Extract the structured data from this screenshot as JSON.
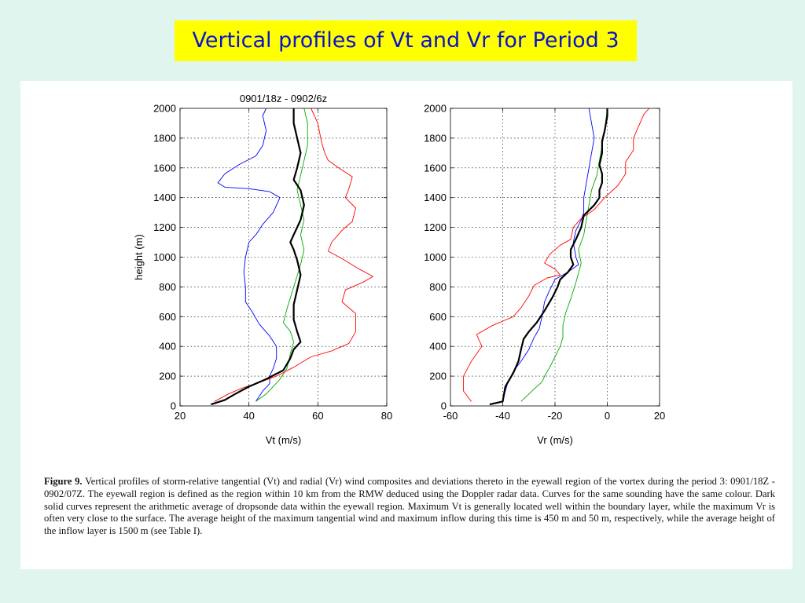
{
  "slide": {
    "title": "Vertical profiles of Vt and Vr for Period 3"
  },
  "caption": {
    "label": "Figure 9.",
    "text": "Vertical profiles of storm-relative tangential (Vt) and radial (Vr) wind composites and deviations thereto in the eyewall region of the vortex during the period 3: 0901/18Z - 0902/07Z. The eyewall region is defined as the region within 10 km from the RMW deduced using the Doppler radar data. Curves for the same sounding have the same colour. Dark solid curves represent the arithmetic average of dropsonde data within the eyewall region. Maximum Vt is generally located well within the boundary layer, while the maximum Vr is often very close to the surface. The average height of the maximum tangential wind and maximum inflow during this time is 450 m and 50 m, respectively, while the average height of the inflow layer is 1500 m (see Table I)."
  },
  "chart_data": [
    {
      "type": "line",
      "title": "0901/18z - 0902/6z",
      "xlabel": "Vt (m/s)",
      "ylabel": "height (m)",
      "xlim": [
        20,
        80
      ],
      "ylim": [
        0,
        2000
      ],
      "xticks": [
        20,
        40,
        60,
        80
      ],
      "yticks": [
        0,
        200,
        400,
        600,
        800,
        1000,
        1200,
        1400,
        1600,
        1800,
        2000
      ],
      "grid": true,
      "series": [
        {
          "color": "#0000ff",
          "width": 0.9,
          "points": [
            [
              42,
              30
            ],
            [
              44,
              100
            ],
            [
              46,
              150
            ],
            [
              46,
              200
            ],
            [
              47,
              250
            ],
            [
              48,
              320
            ],
            [
              48,
              400
            ],
            [
              46,
              470
            ],
            [
              43,
              550
            ],
            [
              41,
              630
            ],
            [
              39,
              700
            ],
            [
              39,
              800
            ],
            [
              38.5,
              900
            ],
            [
              39,
              1000
            ],
            [
              40,
              1100
            ],
            [
              42,
              1150
            ],
            [
              44,
              1220
            ],
            [
              47,
              1300
            ],
            [
              49,
              1400
            ],
            [
              46,
              1440
            ],
            [
              40,
              1460
            ],
            [
              33,
              1470
            ],
            [
              31,
              1500
            ],
            [
              33,
              1560
            ],
            [
              37,
              1620
            ],
            [
              42,
              1680
            ],
            [
              44,
              1750
            ],
            [
              45,
              1850
            ],
            [
              44,
              1950
            ],
            [
              45,
              2000
            ]
          ]
        },
        {
          "color": "#00aa00",
          "width": 0.9,
          "points": [
            [
              42,
              30
            ],
            [
              45,
              80
            ],
            [
              47,
              130
            ],
            [
              49,
              180
            ],
            [
              51,
              250
            ],
            [
              52,
              350
            ],
            [
              53,
              430
            ],
            [
              52,
              500
            ],
            [
              50,
              560
            ],
            [
              51,
              650
            ],
            [
              53,
              800
            ],
            [
              55,
              950
            ],
            [
              56,
              1050
            ],
            [
              55,
              1150
            ],
            [
              56,
              1250
            ],
            [
              55,
              1350
            ],
            [
              54,
              1450
            ],
            [
              55,
              1550
            ],
            [
              56,
              1650
            ],
            [
              57,
              1750
            ],
            [
              57,
              1900
            ],
            [
              56,
              2000
            ]
          ]
        },
        {
          "color": "#ff0000",
          "width": 0.9,
          "points": [
            [
              30,
              30
            ],
            [
              34,
              80
            ],
            [
              38,
              120
            ],
            [
              42,
              150
            ],
            [
              48,
              200
            ],
            [
              53,
              260
            ],
            [
              58,
              330
            ],
            [
              64,
              370
            ],
            [
              69,
              420
            ],
            [
              71,
              500
            ],
            [
              71,
              620
            ],
            [
              67,
              700
            ],
            [
              68,
              780
            ],
            [
              73,
              830
            ],
            [
              76,
              870
            ],
            [
              72,
              920
            ],
            [
              67,
              990
            ],
            [
              63,
              1040
            ],
            [
              64,
              1100
            ],
            [
              67,
              1180
            ],
            [
              70,
              1240
            ],
            [
              71,
              1330
            ],
            [
              68,
              1400
            ],
            [
              69,
              1460
            ],
            [
              70,
              1540
            ],
            [
              66,
              1600
            ],
            [
              63,
              1650
            ],
            [
              62,
              1700
            ],
            [
              61,
              1780
            ],
            [
              60,
              1900
            ],
            [
              58,
              2000
            ]
          ]
        },
        {
          "color": "#000000",
          "width": 2.2,
          "points": [
            [
              29,
              10
            ],
            [
              33,
              40
            ],
            [
              36,
              80
            ],
            [
              40,
              130
            ],
            [
              45,
              180
            ],
            [
              50,
              240
            ],
            [
              52,
              320
            ],
            [
              53,
              380
            ],
            [
              55,
              430
            ],
            [
              54,
              500
            ],
            [
              53,
              580
            ],
            [
              53,
              680
            ],
            [
              54,
              780
            ],
            [
              55,
              880
            ],
            [
              54,
              980
            ],
            [
              53,
              1050
            ],
            [
              52,
              1100
            ],
            [
              53,
              1150
            ],
            [
              55,
              1250
            ],
            [
              56,
              1350
            ],
            [
              55,
              1450
            ],
            [
              53,
              1520
            ],
            [
              54,
              1600
            ],
            [
              55,
              1700
            ],
            [
              54,
              1800
            ],
            [
              53,
              1900
            ],
            [
              53,
              2000
            ]
          ]
        }
      ]
    },
    {
      "type": "line",
      "title": "",
      "xlabel": "Vr (m/s)",
      "ylabel": "",
      "xlim": [
        -60,
        20
      ],
      "ylim": [
        0,
        2000
      ],
      "xticks": [
        -60,
        -40,
        -20,
        0,
        20
      ],
      "yticks": [
        0,
        200,
        400,
        600,
        800,
        1000,
        1200,
        1400,
        1600,
        1800,
        2000
      ],
      "grid": true,
      "series": [
        {
          "color": "#0000ff",
          "width": 0.9,
          "points": [
            [
              -40,
              30
            ],
            [
              -39,
              100
            ],
            [
              -38,
              160
            ],
            [
              -36,
              230
            ],
            [
              -33,
              300
            ],
            [
              -30,
              380
            ],
            [
              -28,
              460
            ],
            [
              -26,
              520
            ],
            [
              -25,
              600
            ],
            [
              -24,
              700
            ],
            [
              -22,
              780
            ],
            [
              -20,
              850
            ],
            [
              -15,
              900
            ],
            [
              -11,
              950
            ],
            [
              -12,
              1000
            ],
            [
              -13,
              1100
            ],
            [
              -12,
              1180
            ],
            [
              -10,
              1250
            ],
            [
              -9,
              1300
            ],
            [
              -9,
              1400
            ],
            [
              -8,
              1500
            ],
            [
              -7,
              1600
            ],
            [
              -6,
              1700
            ],
            [
              -5,
              1800
            ],
            [
              -6,
              1900
            ],
            [
              -7,
              2000
            ]
          ]
        },
        {
          "color": "#00aa00",
          "width": 0.9,
          "points": [
            [
              -33,
              30
            ],
            [
              -30,
              80
            ],
            [
              -27,
              130
            ],
            [
              -25,
              160
            ],
            [
              -24,
              200
            ],
            [
              -22,
              260
            ],
            [
              -20,
              330
            ],
            [
              -18,
              400
            ],
            [
              -17,
              460
            ],
            [
              -17,
              540
            ],
            [
              -16,
              620
            ],
            [
              -14,
              720
            ],
            [
              -12,
              830
            ],
            [
              -10,
              960
            ],
            [
              -11,
              1050
            ],
            [
              -9,
              1150
            ],
            [
              -8,
              1250
            ],
            [
              -7,
              1350
            ],
            [
              -6,
              1450
            ],
            [
              -4,
              1550
            ],
            [
              -3,
              1650
            ],
            [
              -2,
              1750
            ],
            [
              -1,
              1850
            ],
            [
              0,
              2000
            ]
          ]
        },
        {
          "color": "#ff0000",
          "width": 0.9,
          "points": [
            [
              -52,
              30
            ],
            [
              -55,
              100
            ],
            [
              -55,
              200
            ],
            [
              -52,
              300
            ],
            [
              -48,
              400
            ],
            [
              -50,
              480
            ],
            [
              -44,
              540
            ],
            [
              -36,
              600
            ],
            [
              -33,
              660
            ],
            [
              -30,
              740
            ],
            [
              -28,
              810
            ],
            [
              -23,
              860
            ],
            [
              -18,
              880
            ],
            [
              -20,
              920
            ],
            [
              -24,
              960
            ],
            [
              -22,
              1020
            ],
            [
              -18,
              1080
            ],
            [
              -14,
              1120
            ],
            [
              -13,
              1200
            ],
            [
              -10,
              1260
            ],
            [
              -5,
              1320
            ],
            [
              -1,
              1400
            ],
            [
              4,
              1480
            ],
            [
              7,
              1560
            ],
            [
              7,
              1640
            ],
            [
              10,
              1720
            ],
            [
              10,
              1800
            ],
            [
              12,
              1880
            ],
            [
              14,
              1960
            ],
            [
              16,
              2000
            ]
          ]
        },
        {
          "color": "#000000",
          "width": 2.2,
          "points": [
            [
              -45,
              10
            ],
            [
              -40,
              30
            ],
            [
              -39,
              130
            ],
            [
              -38,
              160
            ],
            [
              -36,
              220
            ],
            [
              -34,
              300
            ],
            [
              -33,
              380
            ],
            [
              -32,
              450
            ],
            [
              -30,
              500
            ],
            [
              -27,
              560
            ],
            [
              -24,
              640
            ],
            [
              -21,
              730
            ],
            [
              -19,
              800
            ],
            [
              -18,
              850
            ],
            [
              -15,
              900
            ],
            [
              -13,
              950
            ],
            [
              -14,
              1000
            ],
            [
              -14,
              1050
            ],
            [
              -12,
              1120
            ],
            [
              -10,
              1200
            ],
            [
              -9,
              1280
            ],
            [
              -5,
              1350
            ],
            [
              -3,
              1400
            ],
            [
              -3,
              1450
            ],
            [
              -2,
              1500
            ],
            [
              -2,
              1560
            ],
            [
              -3,
              1620
            ],
            [
              -2,
              1700
            ],
            [
              -2,
              1780
            ],
            [
              -1,
              1850
            ],
            [
              0,
              1950
            ],
            [
              0,
              2000
            ]
          ]
        }
      ]
    }
  ]
}
